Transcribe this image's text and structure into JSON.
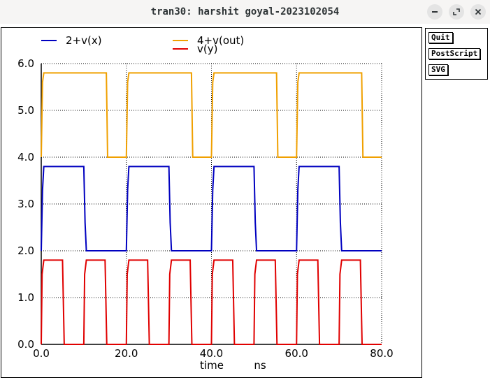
{
  "window": {
    "title": "tran30: harshit goyal-2023102054",
    "minimize_icon": "minimize-icon",
    "maximize_icon": "maximize-icon",
    "close_icon": "close-icon"
  },
  "side_buttons": {
    "quit": "Quit",
    "postscript": "PostScript",
    "svg": "SVG"
  },
  "chart_data": {
    "type": "line",
    "title": "",
    "xlabel": "time",
    "xunit": "ns",
    "ylabel": "",
    "xlim": [
      0,
      80
    ],
    "ylim": [
      0,
      6
    ],
    "x_ticks": [
      "0.0",
      "20.0",
      "40.0",
      "60.0",
      "80.0"
    ],
    "y_ticks": [
      "0.0",
      "1.0",
      "2.0",
      "3.0",
      "4.0",
      "5.0",
      "6.0"
    ],
    "grid": true,
    "legend_position": "top",
    "series": [
      {
        "name": "2+v(x)",
        "color": "#0000c0",
        "x": [
          0,
          0.3,
          0.6,
          10,
          10.3,
          10.6,
          20,
          20.3,
          20.6,
          30,
          30.3,
          30.6,
          40,
          40.3,
          40.6,
          50,
          50.3,
          50.6,
          60,
          60.3,
          60.6,
          70,
          70.3,
          70.6,
          80
        ],
        "y": [
          2.0,
          3.3,
          3.8,
          3.8,
          2.6,
          2.0,
          2.0,
          3.3,
          3.8,
          3.8,
          2.6,
          2.0,
          2.0,
          3.3,
          3.8,
          3.8,
          2.6,
          2.0,
          2.0,
          3.3,
          3.8,
          3.8,
          2.6,
          2.0,
          2.0
        ]
      },
      {
        "name": "4+v(out)",
        "color": "#f0a000",
        "x": [
          0,
          0.3,
          0.6,
          15.3,
          15.6,
          20,
          20.3,
          20.6,
          35.3,
          35.6,
          40,
          40.3,
          40.6,
          55.3,
          55.6,
          60,
          60.3,
          60.6,
          75.3,
          75.6,
          80
        ],
        "y": [
          4.0,
          5.6,
          5.8,
          5.8,
          4.0,
          4.0,
          5.6,
          5.8,
          5.8,
          4.0,
          4.0,
          5.6,
          5.8,
          5.8,
          4.0,
          4.0,
          5.6,
          5.8,
          5.8,
          4.0,
          4.0
        ]
      },
      {
        "name": "v(y)",
        "color": "#e00000",
        "x": [
          0,
          0.2,
          0.6,
          5,
          5.4,
          10,
          10.2,
          10.6,
          15,
          15.4,
          20,
          20.2,
          20.6,
          25,
          25.4,
          30,
          30.2,
          30.6,
          35,
          35.4,
          40,
          40.2,
          40.6,
          45,
          45.4,
          50,
          50.2,
          50.6,
          55,
          55.4,
          60,
          60.2,
          60.6,
          65,
          65.4,
          70,
          70.2,
          70.6,
          75,
          75.4,
          80
        ],
        "y": [
          0,
          1.5,
          1.8,
          1.8,
          0,
          0,
          1.5,
          1.8,
          1.8,
          0,
          0,
          1.5,
          1.8,
          1.8,
          0,
          0,
          1.5,
          1.8,
          1.8,
          0,
          0,
          1.5,
          1.8,
          1.8,
          0,
          0,
          1.5,
          1.8,
          1.8,
          0,
          0,
          1.5,
          1.8,
          1.8,
          0,
          0,
          1.5,
          1.8,
          1.8,
          0,
          0
        ]
      }
    ]
  }
}
